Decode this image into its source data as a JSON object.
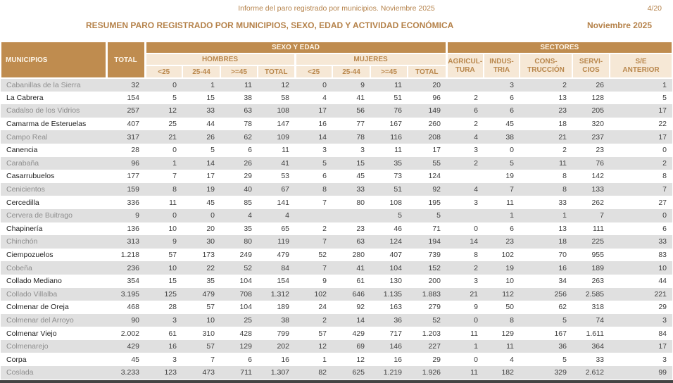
{
  "page_header": {
    "doc_title": "Informe del paro registrado por municipios. Noviembre 2025",
    "page_number": "4/20",
    "report_title": "RESUMEN PARO REGISTRADO POR MUNICIPIOS, SEXO, EDAD Y ACTIVIDAD ECONÓMICA",
    "period": "Noviembre 2025"
  },
  "colors": {
    "header_brown": "#bf8c4f",
    "header_cream": "#f6e8d6",
    "header_text_light": "#fdf5e8",
    "header_text_brown": "#b9874c",
    "stripe_gray": "#e0e0e0",
    "number_text": "#3e3e3e",
    "muted_row_label": "#8e8e8e"
  },
  "table": {
    "headers": {
      "municipios": "MUNICIPIOS",
      "total": "TOTAL",
      "sexo_edad": "SEXO Y EDAD",
      "sectores": "SECTORES",
      "hombres": "HOMBRES",
      "mujeres": "MUJERES",
      "age_cols": [
        "<25",
        "25-44",
        ">=45",
        "TOTAL"
      ],
      "sector_cols": [
        "AGRICUL-\nTURA",
        "INDUS-\nTRIA",
        "CONS-\nTRUCCIÓN",
        "SERVI-\nCIOS",
        "S/E\nANTERIOR"
      ]
    },
    "rows": [
      {
        "name": "Cabanillas de la Sierra",
        "values": [
          "32",
          "0",
          "1",
          "11",
          "12",
          "0",
          "9",
          "11",
          "20",
          "",
          "3",
          "2",
          "26",
          "1"
        ]
      },
      {
        "name": "La Cabrera",
        "values": [
          "154",
          "5",
          "15",
          "38",
          "58",
          "4",
          "41",
          "51",
          "96",
          "2",
          "6",
          "13",
          "128",
          "5"
        ]
      },
      {
        "name": "Cadalso de los Vidrios",
        "values": [
          "257",
          "12",
          "33",
          "63",
          "108",
          "17",
          "56",
          "76",
          "149",
          "6",
          "6",
          "23",
          "205",
          "17"
        ]
      },
      {
        "name": "Camarma de Esteruelas",
        "values": [
          "407",
          "25",
          "44",
          "78",
          "147",
          "16",
          "77",
          "167",
          "260",
          "2",
          "45",
          "18",
          "320",
          "22"
        ]
      },
      {
        "name": "Campo Real",
        "values": [
          "317",
          "21",
          "26",
          "62",
          "109",
          "14",
          "78",
          "116",
          "208",
          "4",
          "38",
          "21",
          "237",
          "17"
        ]
      },
      {
        "name": "Canencia",
        "values": [
          "28",
          "0",
          "5",
          "6",
          "11",
          "3",
          "3",
          "11",
          "17",
          "3",
          "0",
          "2",
          "23",
          "0"
        ]
      },
      {
        "name": "Carabaña",
        "values": [
          "96",
          "1",
          "14",
          "26",
          "41",
          "5",
          "15",
          "35",
          "55",
          "2",
          "5",
          "11",
          "76",
          "2"
        ]
      },
      {
        "name": "Casarrubuelos",
        "values": [
          "177",
          "7",
          "17",
          "29",
          "53",
          "6",
          "45",
          "73",
          "124",
          "",
          "19",
          "8",
          "142",
          "8"
        ]
      },
      {
        "name": "Cenicientos",
        "values": [
          "159",
          "8",
          "19",
          "40",
          "67",
          "8",
          "33",
          "51",
          "92",
          "4",
          "7",
          "8",
          "133",
          "7"
        ]
      },
      {
        "name": "Cercedilla",
        "values": [
          "336",
          "11",
          "45",
          "85",
          "141",
          "7",
          "80",
          "108",
          "195",
          "3",
          "11",
          "33",
          "262",
          "27"
        ]
      },
      {
        "name": "Cervera de Buitrago",
        "values": [
          "9",
          "0",
          "0",
          "4",
          "4",
          "",
          "",
          "5",
          "5",
          "",
          "1",
          "1",
          "7",
          "0"
        ]
      },
      {
        "name": "Chapinería",
        "values": [
          "136",
          "10",
          "20",
          "35",
          "65",
          "2",
          "23",
          "46",
          "71",
          "0",
          "6",
          "13",
          "111",
          "6"
        ]
      },
      {
        "name": "Chinchón",
        "values": [
          "313",
          "9",
          "30",
          "80",
          "119",
          "7",
          "63",
          "124",
          "194",
          "14",
          "23",
          "18",
          "225",
          "33"
        ]
      },
      {
        "name": "Ciempozuelos",
        "values": [
          "1.218",
          "57",
          "173",
          "249",
          "479",
          "52",
          "280",
          "407",
          "739",
          "8",
          "102",
          "70",
          "955",
          "83"
        ]
      },
      {
        "name": "Cobeña",
        "values": [
          "236",
          "10",
          "22",
          "52",
          "84",
          "7",
          "41",
          "104",
          "152",
          "2",
          "19",
          "16",
          "189",
          "10"
        ]
      },
      {
        "name": "Collado Mediano",
        "values": [
          "354",
          "15",
          "35",
          "104",
          "154",
          "9",
          "61",
          "130",
          "200",
          "3",
          "10",
          "34",
          "263",
          "44"
        ]
      },
      {
        "name": "Collado Villalba",
        "values": [
          "3.195",
          "125",
          "479",
          "708",
          "1.312",
          "102",
          "646",
          "1.135",
          "1.883",
          "21",
          "112",
          "256",
          "2.585",
          "221"
        ]
      },
      {
        "name": "Colmenar de Oreja",
        "values": [
          "468",
          "28",
          "57",
          "104",
          "189",
          "24",
          "92",
          "163",
          "279",
          "9",
          "50",
          "62",
          "318",
          "29"
        ]
      },
      {
        "name": "Colmenar del Arroyo",
        "values": [
          "90",
          "3",
          "10",
          "25",
          "38",
          "2",
          "14",
          "36",
          "52",
          "0",
          "8",
          "5",
          "74",
          "3"
        ]
      },
      {
        "name": "Colmenar Viejo",
        "values": [
          "2.002",
          "61",
          "310",
          "428",
          "799",
          "57",
          "429",
          "717",
          "1.203",
          "11",
          "129",
          "167",
          "1.611",
          "84"
        ]
      },
      {
        "name": "Colmenarejo",
        "values": [
          "429",
          "16",
          "57",
          "129",
          "202",
          "12",
          "69",
          "146",
          "227",
          "1",
          "11",
          "36",
          "364",
          "17"
        ]
      },
      {
        "name": "Corpa",
        "values": [
          "45",
          "3",
          "7",
          "6",
          "16",
          "1",
          "12",
          "16",
          "29",
          "0",
          "4",
          "5",
          "33",
          "3"
        ]
      },
      {
        "name": "Coslada",
        "values": [
          "3.233",
          "123",
          "473",
          "711",
          "1.307",
          "82",
          "625",
          "1.219",
          "1.926",
          "11",
          "182",
          "329",
          "2.612",
          "99"
        ]
      }
    ]
  }
}
